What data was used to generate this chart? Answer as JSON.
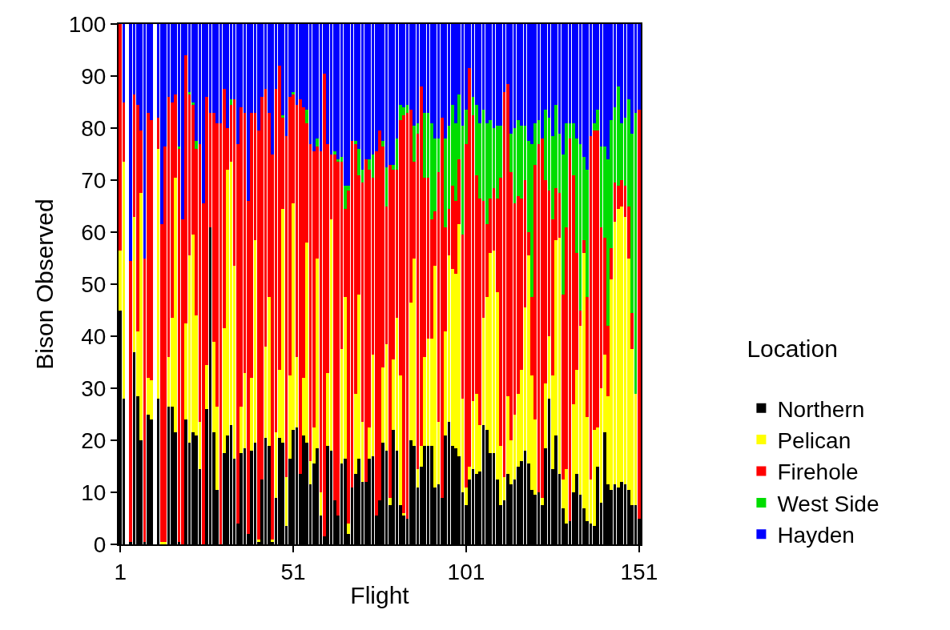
{
  "chart_data": {
    "type": "bar",
    "stacked": true,
    "xlabel": "Flight",
    "ylabel": "Bison Observed",
    "legend_title": "Location",
    "legend": "right",
    "x": [
      1,
      2,
      3,
      4,
      5,
      6,
      7,
      8,
      9,
      10,
      11,
      12,
      13,
      14,
      15,
      16,
      17,
      18,
      19,
      20,
      21,
      22,
      23,
      24,
      25,
      26,
      27,
      28,
      29,
      30,
      31,
      32,
      33,
      34,
      35,
      36,
      37,
      38,
      39,
      40,
      41,
      42,
      43,
      44,
      45,
      46,
      47,
      48,
      49,
      50,
      51,
      52,
      53,
      54,
      55,
      56,
      57,
      58,
      59,
      60,
      61,
      62,
      63,
      64,
      65,
      66,
      67,
      68,
      69,
      70,
      71,
      72,
      73,
      74,
      75,
      76,
      77,
      78,
      79,
      80,
      81,
      82,
      83,
      84,
      85,
      86,
      87,
      88,
      89,
      90,
      91,
      92,
      93,
      94,
      95,
      96,
      97,
      98,
      99,
      100,
      101,
      102,
      103,
      104,
      105,
      106,
      107,
      108,
      109,
      110,
      111,
      112,
      113,
      114,
      115,
      116,
      117,
      118,
      119,
      120,
      121,
      122,
      123,
      124,
      125,
      126,
      127,
      128,
      129,
      130,
      131,
      132,
      133,
      134,
      135,
      136,
      137,
      138,
      139,
      140,
      141,
      142,
      143,
      144,
      145,
      146,
      147,
      148,
      149,
      150,
      151
    ],
    "xlim": [
      0.5,
      151.5
    ],
    "xticks": [
      1,
      51,
      101,
      151
    ],
    "ylim": [
      0,
      100
    ],
    "yticks": [
      0,
      10,
      20,
      30,
      40,
      50,
      60,
      70,
      80,
      90,
      100
    ],
    "series": [
      {
        "name": "Northern",
        "color": "#000000",
        "values": [
          45,
          28,
          null,
          0.5,
          37,
          28.5,
          20,
          0.5,
          25,
          24,
          null,
          28,
          0,
          0,
          26.5,
          26.5,
          21.5,
          0.5,
          0,
          24,
          19.5,
          21.5,
          21,
          14.5,
          0,
          26,
          61,
          21.5,
          10.5,
          0,
          17.5,
          21,
          23,
          16.5,
          4,
          17.5,
          18.5,
          2,
          18,
          19.5,
          0.5,
          12.5,
          20.5,
          19,
          0.5,
          9,
          20.5,
          19.5,
          3.5,
          16.5,
          22,
          22.5,
          13.5,
          21,
          19.5,
          11.5,
          15.5,
          18.5,
          5.5,
          1.5,
          19,
          18,
          8.5,
          5.5,
          15.5,
          16.5,
          2,
          11,
          13.5,
          16.5,
          12,
          12,
          16.5,
          17,
          5.5,
          8.5,
          19.5,
          18,
          7.5,
          22,
          18,
          7.5,
          5.5,
          5,
          20,
          19,
          11,
          15,
          19,
          19,
          19,
          11,
          11.5,
          9,
          21,
          23.5,
          19,
          18.5,
          17,
          10,
          7.5,
          12.5,
          14.5,
          13.5,
          14,
          23,
          22,
          17.5,
          17.5,
          12.5,
          7.5,
          8.5,
          13.5,
          11.5,
          12.5,
          15,
          16,
          18,
          15.5,
          10.5,
          9.5,
          10,
          7.5,
          18.5,
          28,
          14.5,
          21,
          13.5,
          7,
          4,
          4.5,
          10,
          13.5,
          9.5,
          7,
          4.5,
          4,
          3.5,
          15,
          8,
          21.5,
          11.5,
          10.5,
          11.5,
          11,
          12,
          11.5,
          10.5,
          7.5,
          7.5,
          5
        ]
      },
      {
        "name": "Pelican",
        "color": "#ffff00",
        "values": [
          11.5,
          45.5,
          null,
          0,
          26,
          12.5,
          47.5,
          0,
          7,
          7.5,
          null,
          48,
          0.5,
          0.5,
          9.5,
          17,
          49,
          0,
          0,
          18.5,
          36,
          38,
          23,
          9,
          0,
          8.5,
          0,
          17.5,
          16,
          0,
          24,
          51,
          50.5,
          37,
          0,
          9,
          14.5,
          0,
          14,
          39,
          0.5,
          0,
          17.5,
          28.5,
          0.5,
          12.5,
          13,
          45,
          9.5,
          16,
          43.5,
          13.5,
          0,
          11,
          38.5,
          4.5,
          7,
          36.5,
          4.5,
          0,
          14,
          44.5,
          0,
          0,
          22,
          31,
          2,
          0,
          15.5,
          31.5,
          11.5,
          0,
          6,
          19.5,
          0,
          0,
          14.5,
          20.5,
          1.5,
          13.5,
          25.5,
          25,
          0.5,
          0,
          26.5,
          36,
          3.5,
          4,
          17,
          20.5,
          20.5,
          42.5,
          12,
          0,
          20,
          32,
          34,
          33.5,
          44.5,
          18,
          3.5,
          2.5,
          13,
          15.5,
          9,
          20.5,
          25.5,
          38.5,
          39,
          36,
          11.5,
          4.5,
          15,
          8.5,
          12.5,
          14,
          17.5,
          27.5,
          40,
          22,
          14.5,
          0,
          1.5,
          12.5,
          12,
          18,
          37.5,
          45.5,
          5.5,
          10.5,
          0,
          17,
          20,
          32.5,
          49,
          20,
          8.5,
          18.5,
          7.5,
          22,
          15,
          17,
          40.5,
          50.5,
          53.5,
          53,
          51.5,
          44.5,
          30,
          21.5,
          0
        ]
      },
      {
        "name": "Firehole",
        "color": "#ff0000",
        "values": [
          43.5,
          11.5,
          null,
          54,
          23.5,
          43.5,
          12,
          54.5,
          51,
          50,
          null,
          6,
          61,
          76,
          50,
          41.5,
          16,
          75.5,
          62.5,
          51.5,
          31,
          25,
          32,
          53.5,
          65.5,
          51.5,
          22,
          44,
          54.5,
          81,
          46,
          8,
          11,
          32,
          73,
          57.5,
          50,
          64,
          51,
          24.5,
          78.5,
          73.5,
          49.5,
          35.5,
          74,
          66,
          58.5,
          17.5,
          65.5,
          53.5,
          21,
          48.5,
          72,
          52,
          23,
          61,
          53,
          21.5,
          65.5,
          89,
          44,
          12.5,
          66.5,
          68,
          36,
          17,
          64,
          66.5,
          48,
          23,
          46,
          62,
          49.5,
          34,
          70,
          71,
          42.5,
          26.5,
          64,
          36.5,
          28.5,
          49,
          76.5,
          78,
          37,
          18.5,
          64.5,
          69,
          34.5,
          31,
          23,
          10.5,
          48,
          73,
          20,
          9,
          16,
          14,
          12.5,
          31.5,
          66,
          76.5,
          55,
          42,
          43.5,
          22.5,
          14,
          10.5,
          12,
          18,
          51.5,
          74,
          60,
          51.5,
          40.5,
          38,
          33,
          24.5,
          4.5,
          15,
          49,
          67,
          69,
          39,
          28,
          30,
          10,
          8.5,
          35.5,
          46.5,
          73.5,
          44,
          22.5,
          3,
          2.5,
          23,
          66,
          57.5,
          57,
          31,
          22.5,
          13.5,
          6,
          7.5,
          4.5,
          5,
          6,
          10,
          7,
          0,
          78.5
        ]
      },
      {
        "name": "West Side",
        "color": "#00dd00",
        "values": [
          0,
          0,
          null,
          0,
          0,
          0,
          0,
          0,
          0,
          0,
          null,
          0,
          0,
          0,
          0,
          0,
          0,
          0.5,
          0,
          0,
          0.5,
          0.5,
          1.5,
          0,
          0,
          0,
          0,
          0,
          0,
          0,
          0,
          0,
          1,
          0,
          0,
          0,
          0,
          0,
          0,
          0,
          0,
          0,
          0,
          0,
          0,
          0,
          0,
          0.5,
          0,
          0,
          0.5,
          0,
          0,
          0,
          2.5,
          0,
          0,
          1.5,
          0,
          0,
          0,
          0,
          0.5,
          0.5,
          1,
          4.5,
          1,
          0,
          0.5,
          5,
          2.5,
          0,
          2,
          4.5,
          0,
          0,
          1,
          7.5,
          0,
          1,
          6,
          3,
          1.5,
          1.5,
          0,
          7,
          2,
          0,
          12.5,
          12.5,
          18.5,
          14,
          6.5,
          0,
          17,
          16,
          15.5,
          15,
          12.5,
          21,
          6.5,
          0,
          3.5,
          13.5,
          14.5,
          17.5,
          19.5,
          15,
          11.5,
          14,
          10,
          0,
          0,
          7.5,
          14.5,
          14.5,
          14,
          10.5,
          17.5,
          29.5,
          8,
          4.5,
          0,
          13.5,
          14,
          16,
          16,
          11.5,
          27,
          20,
          3,
          10,
          22,
          32,
          16,
          24.5,
          0,
          1.5,
          4,
          15.5,
          17.5,
          32,
          24.5,
          14.5,
          19,
          11,
          13,
          20.5,
          34.5,
          54,
          0
        ]
      },
      {
        "name": "Hayden",
        "color": "#0000ff",
        "values": [
          0,
          15,
          null,
          45.5,
          13.5,
          15.5,
          20.5,
          45,
          17,
          18.5,
          null,
          18,
          38.5,
          23.5,
          14,
          15,
          13.5,
          23.5,
          37.5,
          6,
          13,
          15,
          22.5,
          23,
          34.5,
          14,
          17,
          17,
          19,
          19,
          12.5,
          20,
          14.5,
          14.5,
          23,
          16,
          17,
          34,
          17,
          17,
          20.5,
          14,
          12.5,
          17,
          25,
          12.5,
          8,
          17.5,
          21.5,
          14,
          13,
          15.5,
          14.5,
          16,
          16.5,
          23,
          24.5,
          22,
          24.5,
          9.5,
          23,
          25,
          24.5,
          26,
          25.5,
          31,
          31,
          22.5,
          22.5,
          24,
          28,
          26,
          26,
          25,
          24.5,
          20.5,
          22.5,
          27.5,
          27,
          27,
          22,
          15.5,
          16,
          15.5,
          16.5,
          19.5,
          19,
          12,
          17,
          17,
          19,
          22,
          22,
          18,
          22,
          19.5,
          15.5,
          19,
          13.5,
          19.5,
          16.5,
          8.5,
          14,
          15.5,
          19,
          16.5,
          19,
          18.5,
          20,
          19.5,
          19.5,
          13,
          11.5,
          21,
          20,
          18.5,
          19.5,
          19.5,
          22.5,
          23,
          19,
          18.5,
          22,
          16.5,
          18,
          21.5,
          15.5,
          21,
          25,
          19,
          19,
          19,
          22,
          23,
          25.5,
          28,
          21.5,
          19,
          16.5,
          23.5,
          23.5,
          26,
          18.5,
          16,
          12,
          19,
          18,
          14.5,
          21,
          17,
          16.5
        ]
      }
    ]
  }
}
